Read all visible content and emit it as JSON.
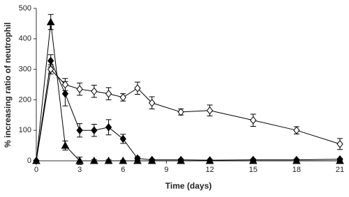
{
  "chart_data": {
    "type": "line",
    "x_label": "Time (days)",
    "y_label": "% increasing ratio of neutrophil",
    "x": [
      0,
      1,
      2,
      3,
      4,
      5,
      6,
      7,
      8,
      10,
      12,
      15,
      18,
      21
    ],
    "series": [
      {
        "color": "#000000",
        "marker": "diamond-open",
        "values": [
          0,
          300,
          250,
          235,
          228,
          220,
          208,
          238,
          190,
          160,
          165,
          133,
          100,
          55
        ],
        "errors": [
          0,
          15,
          20,
          20,
          20,
          20,
          12,
          20,
          20,
          10,
          18,
          20,
          12,
          18
        ]
      },
      {
        "color": "#000000",
        "marker": "diamond",
        "values": [
          0,
          328,
          220,
          100,
          100,
          110,
          72,
          8,
          3,
          3,
          2,
          3,
          3,
          5
        ],
        "errors": [
          0,
          20,
          40,
          22,
          20,
          25,
          15,
          5,
          3,
          3,
          2,
          3,
          3,
          3
        ]
      },
      {
        "color": "#000000",
        "marker": "triangle",
        "values": [
          0,
          455,
          50,
          0,
          0,
          0,
          0,
          0,
          0,
          0,
          0,
          0,
          0,
          0
        ],
        "errors": [
          0,
          25,
          15,
          12,
          4,
          3,
          2,
          2,
          2,
          2,
          2,
          2,
          2,
          2
        ]
      }
    ],
    "xlim": [
      0,
      21
    ],
    "xticks": [
      0,
      3,
      6,
      9,
      12,
      15,
      18,
      21
    ],
    "ylim": [
      0,
      500
    ],
    "yticks": [
      0,
      100,
      200,
      300,
      400,
      500
    ],
    "grid": false
  }
}
